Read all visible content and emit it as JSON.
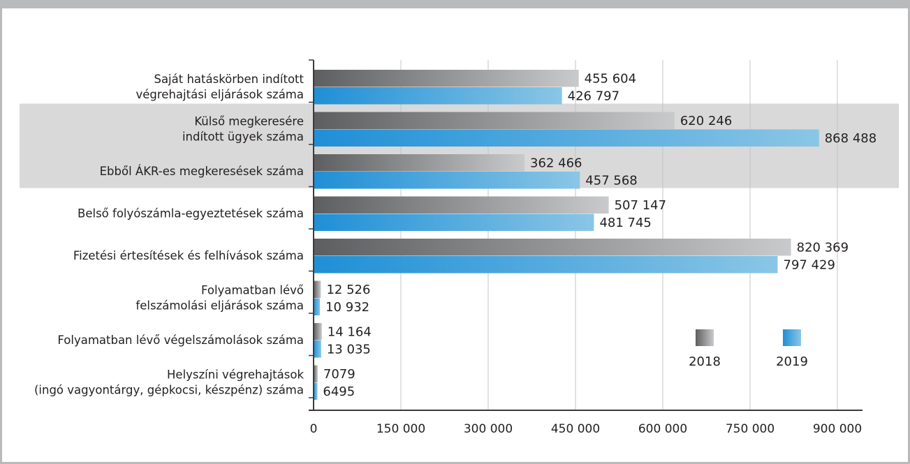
{
  "chart_data": {
    "type": "bar",
    "orientation": "horizontal",
    "categories": [
      [
        "Saját hatáskörben indított",
        "végrehajtási eljárások száma"
      ],
      [
        "Külső megkeresére",
        "indított ügyek száma"
      ],
      [
        "Ebből ÁKR-es megkeresések száma"
      ],
      [
        "Belső folyószámla-egyeztetések száma"
      ],
      [
        "Fizetési értesítések és felhívások száma"
      ],
      [
        "Folyamatban lévő",
        "felszámolási eljárások száma"
      ],
      [
        "Folyamatban lévő végelszámolások száma"
      ],
      [
        "Helyszíni végrehajtások",
        "(ingó vagyontárgy, gépkocsi, készpénz) száma"
      ]
    ],
    "series": [
      {
        "name": "2018",
        "values": [
          455604,
          620246,
          362466,
          507147,
          820369,
          12526,
          14164,
          7079
        ],
        "labels": [
          "455 604",
          "620 246",
          "362 466",
          "507 147",
          "820 369",
          "12 526",
          "14 164",
          "7079"
        ],
        "color_from": "#5d5e60",
        "color_to": "#c9cacc"
      },
      {
        "name": "2019",
        "values": [
          426797,
          868488,
          457568,
          481745,
          797429,
          10932,
          13035,
          6495
        ],
        "labels": [
          "426 797",
          "868 488",
          "457 568",
          "481 745",
          "797 429",
          "10 932",
          "13 035",
          "6495"
        ],
        "color_from": "#1f8fd6",
        "color_to": "#8ac6e6"
      }
    ],
    "highlighted_categories": [
      1,
      2
    ],
    "xlim": [
      0,
      900000
    ],
    "xticks": [
      0,
      150000,
      300000,
      450000,
      600000,
      750000,
      900000
    ],
    "xtick_labels": [
      "0",
      "150 000",
      "300 000",
      "450 000",
      "600 000",
      "750 000",
      "900 000"
    ],
    "grid": true,
    "legend_position": "bottom-right"
  }
}
